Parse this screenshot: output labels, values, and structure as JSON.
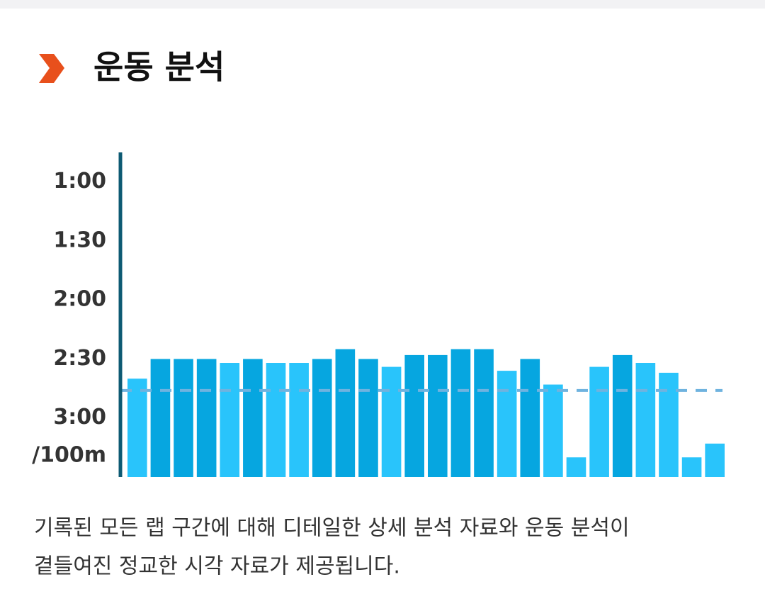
{
  "chart_data": {
    "type": "bar",
    "title": "운동 분석",
    "y_unit_label": "/100m",
    "categories": [
      null,
      null,
      null,
      null,
      null,
      null,
      null,
      null,
      null,
      null,
      null,
      null,
      null,
      null,
      null,
      null,
      null,
      null,
      null,
      null,
      null,
      null,
      null,
      null,
      null,
      null
    ],
    "values": [
      160,
      150,
      150,
      150,
      152,
      150,
      152,
      152,
      150,
      145,
      150,
      154,
      148,
      148,
      145,
      145,
      156,
      150,
      163,
      200,
      154,
      148,
      152,
      157,
      200,
      193
    ],
    "colors": [
      "#29c4fb",
      "#06a6e0",
      "#06a6e0",
      "#06a6e0",
      "#29c4fb",
      "#06a6e0",
      "#29c4fb",
      "#29c4fb",
      "#06a6e0",
      "#06a6e0",
      "#06a6e0",
      "#29c4fb",
      "#06a6e0",
      "#06a6e0",
      "#06a6e0",
      "#06a6e0",
      "#29c4fb",
      "#06a6e0",
      "#29c4fb",
      "#29c4fb",
      "#29c4fb",
      "#06a6e0",
      "#29c4fb",
      "#29c4fb",
      "#29c4fb",
      "#29c4fb"
    ],
    "ylim": [
      210,
      45
    ],
    "yticks": [
      {
        "value": 60,
        "label": "1:00"
      },
      {
        "value": 90,
        "label": "1:30"
      },
      {
        "value": 120,
        "label": "2:00"
      },
      {
        "value": 150,
        "label": "2:30"
      },
      {
        "value": 180,
        "label": "3:00"
      }
    ],
    "reference_line": 166,
    "reference_color": "#6fb3df",
    "grid": false
  },
  "description": [
    "기록된 모든 랩 구간에 대해 디테일한 상세 분석 자료와 운동 분석이",
    "곁들여진 정교한 시각 자료가 제공됩니다."
  ]
}
